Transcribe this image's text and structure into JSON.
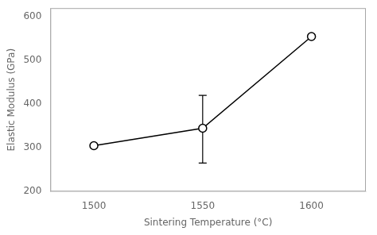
{
  "chart_data": {
    "type": "line",
    "x": [
      1500,
      1550,
      1600
    ],
    "values": [
      305,
      345,
      555
    ],
    "yerr_lower": [
      0,
      80,
      0
    ],
    "yerr_upper": [
      0,
      75,
      0
    ],
    "xlabel": "Sintering Temperature (°C)",
    "ylabel": "Elastic Modulus (GPa)",
    "xlim": [
      1480,
      1625
    ],
    "ylim": [
      200,
      620
    ],
    "xticks": [
      1500,
      1550,
      1600
    ],
    "yticks": [
      200,
      300,
      400,
      500,
      600
    ],
    "color": "#000000",
    "marker": "o",
    "grid": false
  }
}
